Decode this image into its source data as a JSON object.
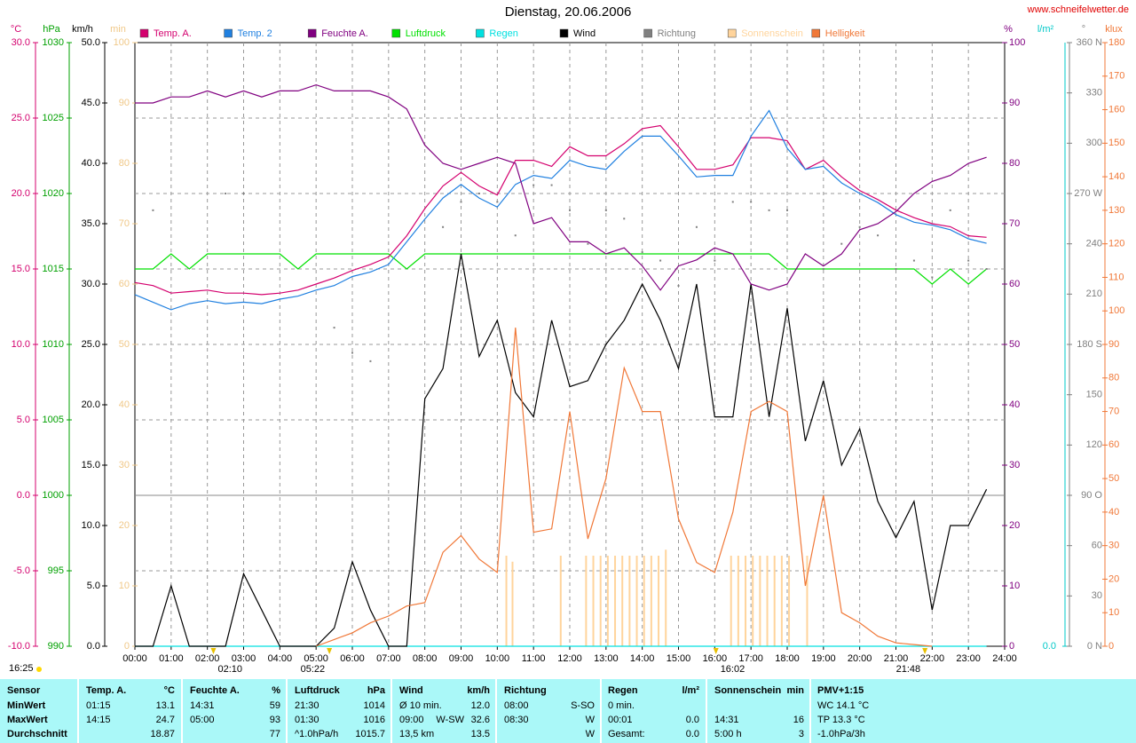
{
  "site": "www.schneifelwetter.de",
  "updated": "16:25",
  "chart_data": {
    "type": "line",
    "title": "Dienstag, 20.06.2006",
    "grid": true,
    "xlim": [
      0,
      24
    ],
    "xticks": [
      {
        "value": 0,
        "label": "00:00"
      },
      {
        "value": 1,
        "label": "01:00"
      },
      {
        "value": 2,
        "label": "02:00"
      },
      {
        "value": 3,
        "label": "03:00"
      },
      {
        "value": 4,
        "label": "04:00"
      },
      {
        "value": 5,
        "label": "05:00"
      },
      {
        "value": 6,
        "label": "06:00"
      },
      {
        "value": 7,
        "label": "07:00"
      },
      {
        "value": 8,
        "label": "08:00"
      },
      {
        "value": 9,
        "label": "09:00"
      },
      {
        "value": 10,
        "label": "10:00"
      },
      {
        "value": 11,
        "label": "11:00"
      },
      {
        "value": 12,
        "label": "12:00"
      },
      {
        "value": 13,
        "label": "13:00"
      },
      {
        "value": 14,
        "label": "14:00"
      },
      {
        "value": 15,
        "label": "15:00"
      },
      {
        "value": 16,
        "label": "16:00"
      },
      {
        "value": 17,
        "label": "17:00"
      },
      {
        "value": 18,
        "label": "18:00"
      },
      {
        "value": 19,
        "label": "19:00"
      },
      {
        "value": 20,
        "label": "20:00"
      },
      {
        "value": 21,
        "label": "21:00"
      },
      {
        "value": 22,
        "label": "22:00"
      },
      {
        "value": 23,
        "label": "23:00"
      },
      {
        "value": 24,
        "label": "24:00"
      }
    ],
    "x": [
      0,
      0.5,
      1,
      1.5,
      2,
      2.5,
      3,
      3.5,
      4,
      4.5,
      5,
      5.5,
      6,
      6.5,
      7,
      7.5,
      8,
      8.5,
      9,
      9.5,
      10,
      10.5,
      11,
      11.5,
      12,
      12.5,
      13,
      13.5,
      14,
      14.5,
      15,
      15.5,
      16,
      16.5,
      17,
      17.5,
      18,
      18.5,
      19,
      19.5,
      20,
      20.5,
      21,
      21.5,
      22,
      22.5,
      23,
      23.5
    ],
    "axes": [
      {
        "id": "temp",
        "unit": "°C",
        "color": "#d4006e",
        "lim": [
          -10,
          30
        ],
        "ticks": [
          {
            "value": -10,
            "label": "-10.0"
          },
          {
            "value": -5,
            "label": "-5.0"
          },
          {
            "value": 0,
            "label": "0.0"
          },
          {
            "value": 5,
            "label": "5.0"
          },
          {
            "value": 10,
            "label": "10.0"
          },
          {
            "value": 15,
            "label": "15.0"
          },
          {
            "value": 20,
            "label": "20.0"
          },
          {
            "value": 25,
            "label": "25.0"
          },
          {
            "value": 30,
            "label": "30.0"
          }
        ]
      },
      {
        "id": "press",
        "unit": "hPa",
        "color": "#00a000",
        "lim": [
          990,
          1030
        ],
        "ticks": [
          990,
          995,
          1000,
          1005,
          1010,
          1015,
          1020,
          1025,
          1030
        ]
      },
      {
        "id": "wind",
        "unit": "km/h",
        "color": "#000000",
        "lim": [
          0,
          50
        ],
        "ticks": [
          {
            "value": 0,
            "label": "0.0"
          },
          {
            "value": 5,
            "label": "5.0"
          },
          {
            "value": 10,
            "label": "10.0"
          },
          {
            "value": 15,
            "label": "15.0"
          },
          {
            "value": 20,
            "label": "20.0"
          },
          {
            "value": 25,
            "label": "25.0"
          },
          {
            "value": 30,
            "label": "30.0"
          },
          {
            "value": 35,
            "label": "35.0"
          },
          {
            "value": 40,
            "label": "40.0"
          },
          {
            "value": 45,
            "label": "45.0"
          },
          {
            "value": 50,
            "label": "50.0"
          }
        ]
      },
      {
        "id": "min",
        "unit": "min",
        "color": "#f0c888",
        "lim": [
          0,
          100
        ],
        "ticks": [
          0,
          10,
          20,
          30,
          40,
          50,
          60,
          70,
          80,
          90,
          100
        ]
      },
      {
        "id": "hum",
        "unit": "%",
        "color": "#800080",
        "lim": [
          0,
          100
        ],
        "ticks": [
          0,
          10,
          20,
          30,
          40,
          50,
          60,
          70,
          80,
          90,
          100
        ]
      },
      {
        "id": "rain",
        "unit": "l/m²",
        "color": "#00c8c8",
        "lim": [
          0,
          10
        ],
        "ticks": [
          {
            "value": 0,
            "label": "0.0"
          }
        ]
      },
      {
        "id": "dir",
        "unit": "°",
        "color": "#808080",
        "lim": [
          0,
          360
        ],
        "ticks": [
          {
            "value": 0,
            "label": "0 N"
          },
          30,
          60,
          {
            "value": 90,
            "label": "90 O"
          },
          120,
          150,
          {
            "value": 180,
            "label": "180 S"
          },
          210,
          240,
          {
            "value": 270,
            "label": "270 W"
          },
          300,
          330,
          {
            "value": 360,
            "label": "360 N"
          }
        ]
      },
      {
        "id": "klux",
        "unit": "klux",
        "color": "#f07838",
        "lim": [
          0,
          180
        ],
        "ticks": [
          0,
          10,
          20,
          30,
          40,
          50,
          60,
          70,
          80,
          90,
          100,
          110,
          120,
          130,
          140,
          150,
          160,
          170,
          180
        ]
      }
    ],
    "series": [
      {
        "name": "Temp. A.",
        "color": "#d4006e",
        "axis": "temp",
        "mark": "line",
        "values": [
          14.1,
          13.9,
          13.4,
          13.5,
          13.6,
          13.4,
          13.4,
          13.3,
          13.4,
          13.6,
          14.0,
          14.4,
          14.9,
          15.3,
          15.8,
          17.2,
          19.0,
          20.5,
          21.4,
          20.5,
          19.9,
          22.2,
          22.2,
          21.8,
          23.1,
          22.5,
          22.5,
          23.3,
          24.3,
          24.5,
          23.1,
          21.6,
          21.6,
          21.9,
          23.7,
          23.7,
          23.5,
          21.6,
          22.2,
          21.1,
          20.2,
          19.6,
          18.9,
          18.4,
          18.0,
          17.8,
          17.2,
          17.1
        ]
      },
      {
        "name": "Temp. 2",
        "color": "#2080e0",
        "axis": "temp",
        "mark": "line",
        "values": [
          13.3,
          12.8,
          12.3,
          12.7,
          12.9,
          12.7,
          12.8,
          12.7,
          13.0,
          13.2,
          13.6,
          13.9,
          14.5,
          14.8,
          15.3,
          16.8,
          18.3,
          19.7,
          20.6,
          19.7,
          19.1,
          20.6,
          21.2,
          21.0,
          22.2,
          21.8,
          21.6,
          22.8,
          23.8,
          23.8,
          22.5,
          21.1,
          21.2,
          21.2,
          23.8,
          25.5,
          23.0,
          21.6,
          21.8,
          20.7,
          20.0,
          19.4,
          18.6,
          18.1,
          17.9,
          17.6,
          17.0,
          16.7
        ]
      },
      {
        "name": "Feuchte A.",
        "color": "#800080",
        "axis": "hum",
        "mark": "line",
        "values": [
          90,
          90,
          91,
          91,
          92,
          91,
          92,
          91,
          92,
          92,
          93,
          92,
          92,
          92,
          91,
          89,
          83,
          80,
          79,
          80,
          81,
          80,
          70,
          71,
          67,
          67,
          65,
          66,
          63,
          59,
          63,
          64,
          66,
          65,
          60,
          59,
          60,
          65,
          63,
          65,
          69,
          70,
          72,
          75,
          77,
          78,
          80,
          81
        ]
      },
      {
        "name": "Luftdruck",
        "color": "#00e000",
        "axis": "press",
        "mark": "line",
        "values": [
          1015,
          1015,
          1016,
          1015,
          1016,
          1016,
          1016,
          1016,
          1016,
          1015,
          1016,
          1016,
          1016,
          1016,
          1016,
          1015,
          1016,
          1016,
          1016,
          1016,
          1016,
          1016,
          1016,
          1016,
          1016,
          1016,
          1016,
          1016,
          1016,
          1016,
          1016,
          1016,
          1016,
          1016,
          1016,
          1016,
          1015,
          1015,
          1015,
          1015,
          1015,
          1015,
          1015,
          1015,
          1014,
          1015,
          1014,
          1015
        ]
      },
      {
        "name": "Regen",
        "color": "#00e0e0",
        "axis": "rain",
        "mark": "line",
        "values": [
          0,
          0,
          0,
          0,
          0,
          0,
          0,
          0,
          0,
          0,
          0,
          0,
          0,
          0,
          0,
          0,
          0,
          0,
          0,
          0,
          0,
          0,
          0,
          0,
          0,
          0,
          0,
          0,
          0,
          0,
          0,
          0,
          0,
          0,
          0,
          0,
          0,
          0,
          0,
          0,
          0,
          0,
          0,
          0,
          0,
          0,
          0,
          0
        ]
      },
      {
        "name": "Wind",
        "color": "#000000",
        "axis": "wind",
        "mark": "line",
        "values": [
          0,
          0,
          5,
          0,
          0,
          0,
          6,
          3,
          0,
          0,
          0,
          1.5,
          7,
          3,
          0,
          0,
          20.5,
          23,
          32.5,
          24,
          27,
          21,
          19,
          27,
          21.5,
          22,
          25,
          27,
          30,
          27,
          23,
          30,
          19,
          19,
          30,
          19,
          28,
          17,
          22,
          15,
          18,
          12,
          9,
          12,
          3,
          10,
          10,
          13
        ]
      },
      {
        "name": "Richtung",
        "color": "#808080",
        "axis": "dir",
        "mark": "dots",
        "values": [
          null,
          260,
          null,
          null,
          null,
          270,
          270,
          null,
          null,
          null,
          null,
          190,
          175,
          170,
          null,
          null,
          null,
          250,
          265,
          270,
          265,
          245,
          275,
          275,
          260,
          240,
          260,
          255,
          235,
          230,
          215,
          250,
          230,
          265,
          265,
          260,
          260,
          null,
          225,
          240,
          250,
          245,
          225,
          230,
          220,
          260,
          230,
          225
        ]
      },
      {
        "name": "Sonnenschein",
        "color": "#ffd49c",
        "axis": "min",
        "mark": "bars",
        "x": [
          10.25,
          10.42,
          11.75,
          12.45,
          12.65,
          12.85,
          13.05,
          13.25,
          13.45,
          13.65,
          13.85,
          14.05,
          14.25,
          14.45,
          14.65,
          16.45,
          16.65,
          16.85,
          17.05,
          17.25,
          17.45,
          17.65,
          17.85,
          18.05,
          18.55
        ],
        "values": [
          15,
          14,
          15,
          15,
          15,
          15,
          15,
          15,
          15,
          15,
          15,
          15,
          15,
          15,
          16,
          15,
          15,
          15,
          15,
          15,
          15,
          15,
          15,
          15,
          15
        ]
      },
      {
        "name": "Helligkeit",
        "color": "#f07838",
        "axis": "klux",
        "mark": "line",
        "values": [
          null,
          null,
          null,
          null,
          null,
          null,
          null,
          null,
          null,
          null,
          0,
          2,
          4,
          7,
          9,
          12,
          13,
          28,
          33,
          26,
          22,
          95,
          34,
          35,
          70,
          32,
          50,
          83,
          70,
          70,
          38,
          25,
          22,
          40,
          70,
          73,
          70,
          18,
          45,
          10,
          7,
          3,
          1,
          0.5,
          0,
          null,
          null,
          null
        ]
      }
    ],
    "annotations": [
      {
        "x": 2.1667,
        "label": "02:10"
      },
      {
        "x": 5.3667,
        "label": "05:22"
      },
      {
        "x": 16.0333,
        "label": "16:02"
      },
      {
        "x": 21.8,
        "label": "21:48"
      }
    ]
  },
  "table": {
    "header": {
      "label": "Sensor",
      "temp_time": "Temp. A.",
      "temp": "°C",
      "hum_time": "Feuchte A.",
      "hum": "%",
      "press_time": "Luftdruck",
      "press": "hPa",
      "wind_time": "Wind",
      "wind": "km/h",
      "dir_time": "Richtung",
      "rain_time": "Regen",
      "rain": "l/m²",
      "sun_time": "Sonnenschein",
      "sun": "min",
      "pmv": "PMV+1:15"
    },
    "rows": [
      {
        "label": "MinWert",
        "temp_time": "01:15",
        "temp": "13.1",
        "hum_time": "14:31",
        "hum": "59",
        "press_time": "21:30",
        "press": "1014",
        "wind_time": "Ø 10 min.",
        "wind": "12.0",
        "dir_time": "08:00",
        "dir": "S-SO",
        "rain_time": "0 min.",
        "pmv": "WC 14.1 °C"
      },
      {
        "label": "MaxWert",
        "temp_time": "14:15",
        "temp": "24.7",
        "hum_time": "05:00",
        "hum": "93",
        "press_time": "01:30",
        "press": "1016",
        "wind_time": "09:00",
        "wind_dir": "W-SW",
        "wind": "32.6",
        "dir_time": "08:30",
        "dir": "W",
        "rain_time": "00:01",
        "rain": "0.0",
        "sun_time": "14:31",
        "sun": "16",
        "pmv": "TP 13.3 °C"
      },
      {
        "label": "Durchschnitt",
        "temp": "18.87",
        "hum": "77",
        "press_time": "^1.0hPa/h",
        "press": "1015.7",
        "wind_time": "13,5 km",
        "wind": "13.5",
        "dir": "W",
        "rain_time": "Gesamt:",
        "rain": "0.0",
        "sun_time": "5:00 h",
        "sun": "3",
        "pmv": "-1.0hPa/3h"
      }
    ]
  }
}
